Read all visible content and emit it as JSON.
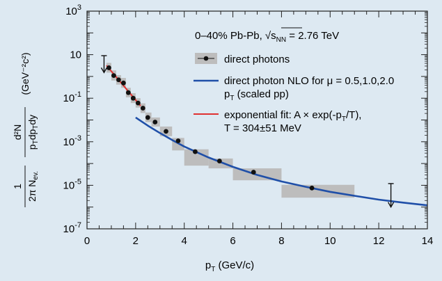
{
  "chart_data": {
    "type": "scatter",
    "title": "0–40%  Pb-Pb, √s",
    "title_sub": "NN",
    "title_tail": " = 2.76 TeV",
    "xlabel": "p",
    "xlabel_sub": "T",
    "xlabel_tail": " (GeV/c)",
    "ylabel_parts": {
      "frac1_num": "1",
      "frac1_den": "2π N",
      "frac1_den_sub": "ev.",
      "frac2_num": "d²N",
      "frac2_den": "p",
      "frac2_den_sub": "T",
      "frac2_den_mid": "dp",
      "frac2_den_sub2": "T",
      "frac2_den_tail": "dy",
      "units": "(GeV⁻²c²)"
    },
    "xlim": [
      0,
      14
    ],
    "ylim_log10": [
      -7,
      3
    ],
    "log_y": true,
    "x_ticks": [
      "0",
      "2",
      "4",
      "6",
      "8",
      "10",
      "12",
      "14"
    ],
    "y_ticks": [
      {
        "base": "10",
        "exp": "3"
      },
      {
        "base": "10",
        "exp": ""
      },
      {
        "base": "10",
        "exp": "-1"
      },
      {
        "base": "10",
        "exp": "-3"
      },
      {
        "base": "10",
        "exp": "-5"
      },
      {
        "base": "10",
        "exp": "-7"
      }
    ],
    "legend": {
      "placement": "top-right",
      "entries": [
        {
          "label": "direct photons"
        },
        {
          "label": "direct photon NLO for μ = 0.5,1.0,2.0",
          "label2": "p",
          "label2_sub": "T",
          "label2_tail": " (scaled pp)"
        },
        {
          "label": "exponential fit: A × exp(-p",
          "label_sub": "T",
          "label_tail": "/T),",
          "label2": "T = 304±51 MeV"
        }
      ]
    },
    "series": [
      {
        "kind": "points",
        "points": [
          {
            "x": 0.9,
            "y": 2.5,
            "sx": [
              0.8,
              1.0
            ],
            "sy": [
              1.5,
              4.2
            ]
          },
          {
            "x": 1.1,
            "y": 1.1,
            "sx": [
              1.0,
              1.2
            ],
            "sy": [
              0.65,
              1.9
            ]
          },
          {
            "x": 1.3,
            "y": 0.7,
            "sx": [
              1.2,
              1.4
            ],
            "sy": [
              0.42,
              1.15
            ]
          },
          {
            "x": 1.5,
            "y": 0.5,
            "sx": [
              1.4,
              1.6
            ],
            "sy": [
              0.3,
              0.85
            ]
          },
          {
            "x": 1.7,
            "y": 0.18,
            "sx": [
              1.6,
              1.8
            ],
            "sy": [
              0.11,
              0.3
            ]
          },
          {
            "x": 1.9,
            "y": 0.1,
            "sx": [
              1.8,
              2.0
            ],
            "sy": [
              0.06,
              0.17
            ]
          },
          {
            "x": 2.1,
            "y": 0.06,
            "sx": [
              2.0,
              2.2
            ],
            "sy": [
              0.037,
              0.1
            ]
          },
          {
            "x": 2.3,
            "y": 0.035,
            "sx": [
              2.2,
              2.4
            ],
            "sy": [
              0.021,
              0.058
            ]
          },
          {
            "x": 2.5,
            "y": 0.013,
            "sx": [
              2.4,
              2.65
            ],
            "sy": [
              0.008,
              0.022
            ]
          },
          {
            "x": 2.8,
            "y": 0.008,
            "sx": [
              2.65,
              3.0
            ],
            "sy": [
              0.005,
              0.013
            ]
          },
          {
            "x": 3.25,
            "y": 0.003,
            "sx": [
              3.0,
              3.5
            ],
            "sy": [
              0.0018,
              0.005
            ]
          },
          {
            "x": 3.75,
            "y": 0.0011,
            "sx": [
              3.5,
              4.0
            ],
            "sy": [
              0.0004,
              0.0015
            ]
          },
          {
            "x": 4.45,
            "y": 0.00035,
            "sx": [
              4.0,
              5.0
            ],
            "sy": [
              8e-05,
              0.00045
            ]
          },
          {
            "x": 5.45,
            "y": 0.00013,
            "sx": [
              5.0,
              6.0
            ],
            "sy": [
              6e-05,
              0.00017
            ]
          },
          {
            "x": 6.85,
            "y": 4e-05,
            "sx": [
              6.0,
              8.0
            ],
            "sy": [
              1.7e-05,
              6e-05
            ]
          },
          {
            "x": 9.25,
            "y": 7.5e-06,
            "sx": [
              8.0,
              11.0
            ],
            "sy": [
              2.7e-06,
              1.05e-05
            ]
          }
        ]
      },
      {
        "kind": "upper_limits",
        "points": [
          {
            "x": 0.7,
            "y": 9,
            "y_low": 1.5
          },
          {
            "x": 12.5,
            "y": 1.2e-05,
            "y_low": 1e-06
          }
        ]
      },
      {
        "kind": "line",
        "color": "#1f4fa8",
        "x": [
          2.0,
          2.5,
          3.0,
          3.5,
          4.0,
          5.0,
          6.0,
          7.0,
          8.0,
          9.0,
          10.0,
          11.0,
          12.0,
          13.0,
          14.0
        ],
        "y": [
          0.013,
          0.0055,
          0.0025,
          0.0012,
          0.0006,
          0.00019,
          7e-05,
          3e-05,
          1.5e-05,
          8.5e-06,
          5e-06,
          3.3e-06,
          2.2e-06,
          1.6e-06,
          1.2e-06
        ]
      },
      {
        "kind": "fit",
        "color": "#e03030",
        "x": [
          0.8,
          2.2
        ],
        "y": [
          3.2,
          0.045
        ]
      }
    ],
    "colors": {
      "background": "#dde9f2",
      "syst_box": "#bdbdbd",
      "nlo": "#1f4fa8",
      "fit": "#e03030",
      "marker": "#111111"
    }
  }
}
